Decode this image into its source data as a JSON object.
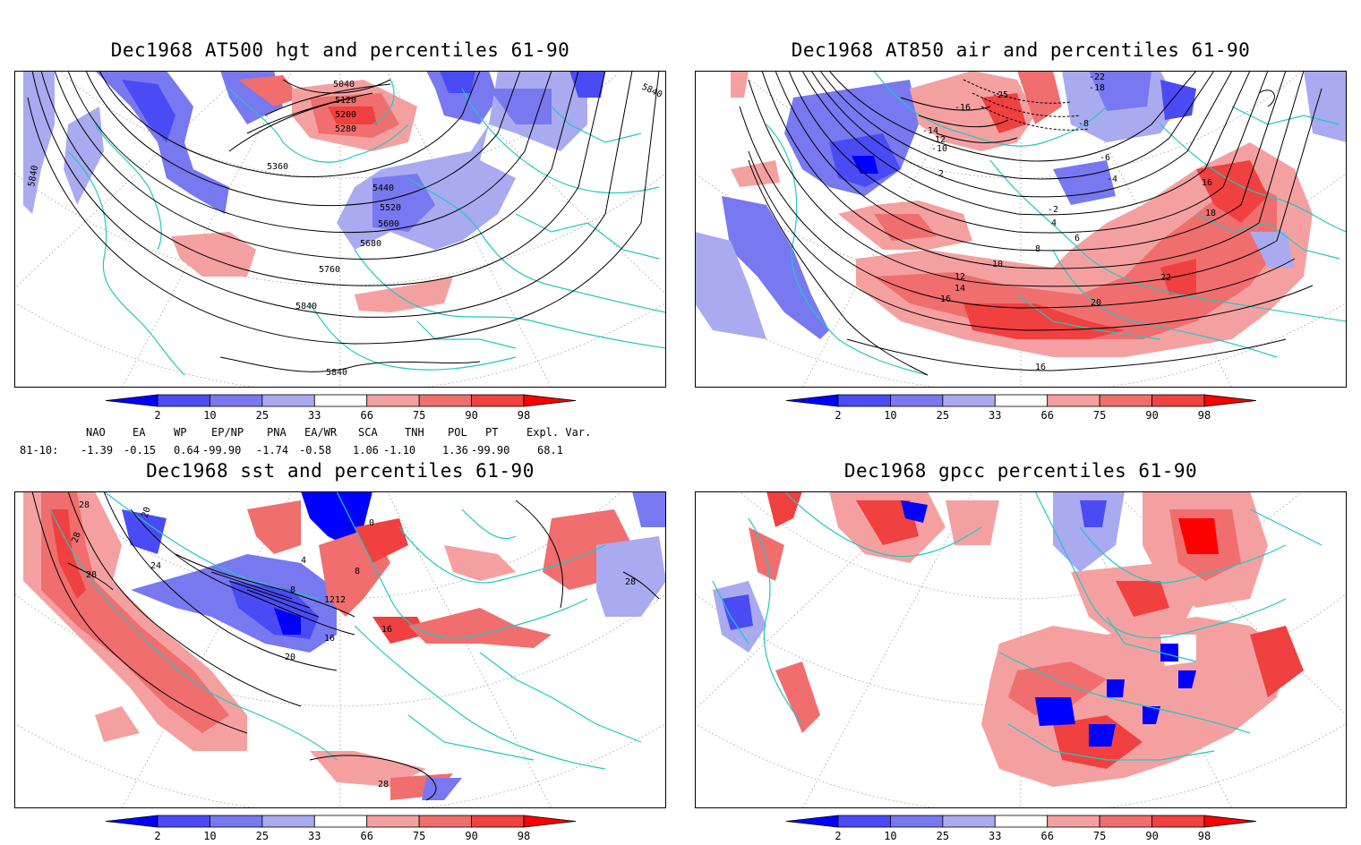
{
  "panels": [
    {
      "id": "hgt500",
      "title": "Dec1968 AT500 hgt and percentiles 61-90",
      "contour_labels": [
        "5040",
        "5120",
        "5200",
        "5280",
        "5360",
        "5440",
        "5520",
        "5600",
        "5680",
        "5760",
        "5840",
        "5840",
        "5840",
        "5840"
      ]
    },
    {
      "id": "air850",
      "title": "Dec1968 AT850 air and percentiles 61-90",
      "contour_labels": [
        "-22",
        "-18",
        "-16",
        "-14",
        "-12",
        "-10",
        "-8",
        "-6",
        "-4",
        "-2",
        "2",
        "4",
        "6",
        "8",
        "10",
        "12",
        "14",
        "16",
        "16",
        "18",
        "20",
        "22",
        "16",
        "-25"
      ]
    },
    {
      "id": "sst",
      "title": "Dec1968 sst and percentiles 61-90",
      "contour_labels": [
        "28",
        "28",
        "28",
        "24",
        "20",
        "16",
        "12",
        "8",
        "4",
        "0",
        "20",
        "28",
        "12",
        "16",
        "28",
        "8"
      ]
    },
    {
      "id": "gpcc",
      "title": "Dec1968 gpcc percentiles 61-90",
      "contour_labels": []
    }
  ],
  "colorbar": {
    "labels": [
      "2",
      "10",
      "25",
      "33",
      "66",
      "75",
      "90",
      "98"
    ],
    "colors": {
      "blue_dark": "#0000ff",
      "blue_mid": "#4b4bf5",
      "blue_light": "#7878f0",
      "blue_pale": "#aaaaf0",
      "red_pale": "#f5a0a0",
      "red_light": "#f06e6e",
      "red_mid": "#f04040",
      "red_dark": "#ff0000",
      "coast": "#1ec8c8"
    }
  },
  "indices": {
    "headers": [
      "NAO",
      "EA",
      "WP",
      "EP/NP",
      "PNA",
      "EA/WR",
      "SCA",
      "TNH",
      "POL",
      "PT",
      "Expl. Var."
    ],
    "row_label": "81-10:",
    "values": [
      "-1.39",
      "-0.15",
      "0.64",
      "-99.90",
      "-1.74",
      "-0.58",
      "1.06",
      "-1.10",
      "1.36",
      "-99.90",
      "68.1"
    ]
  }
}
